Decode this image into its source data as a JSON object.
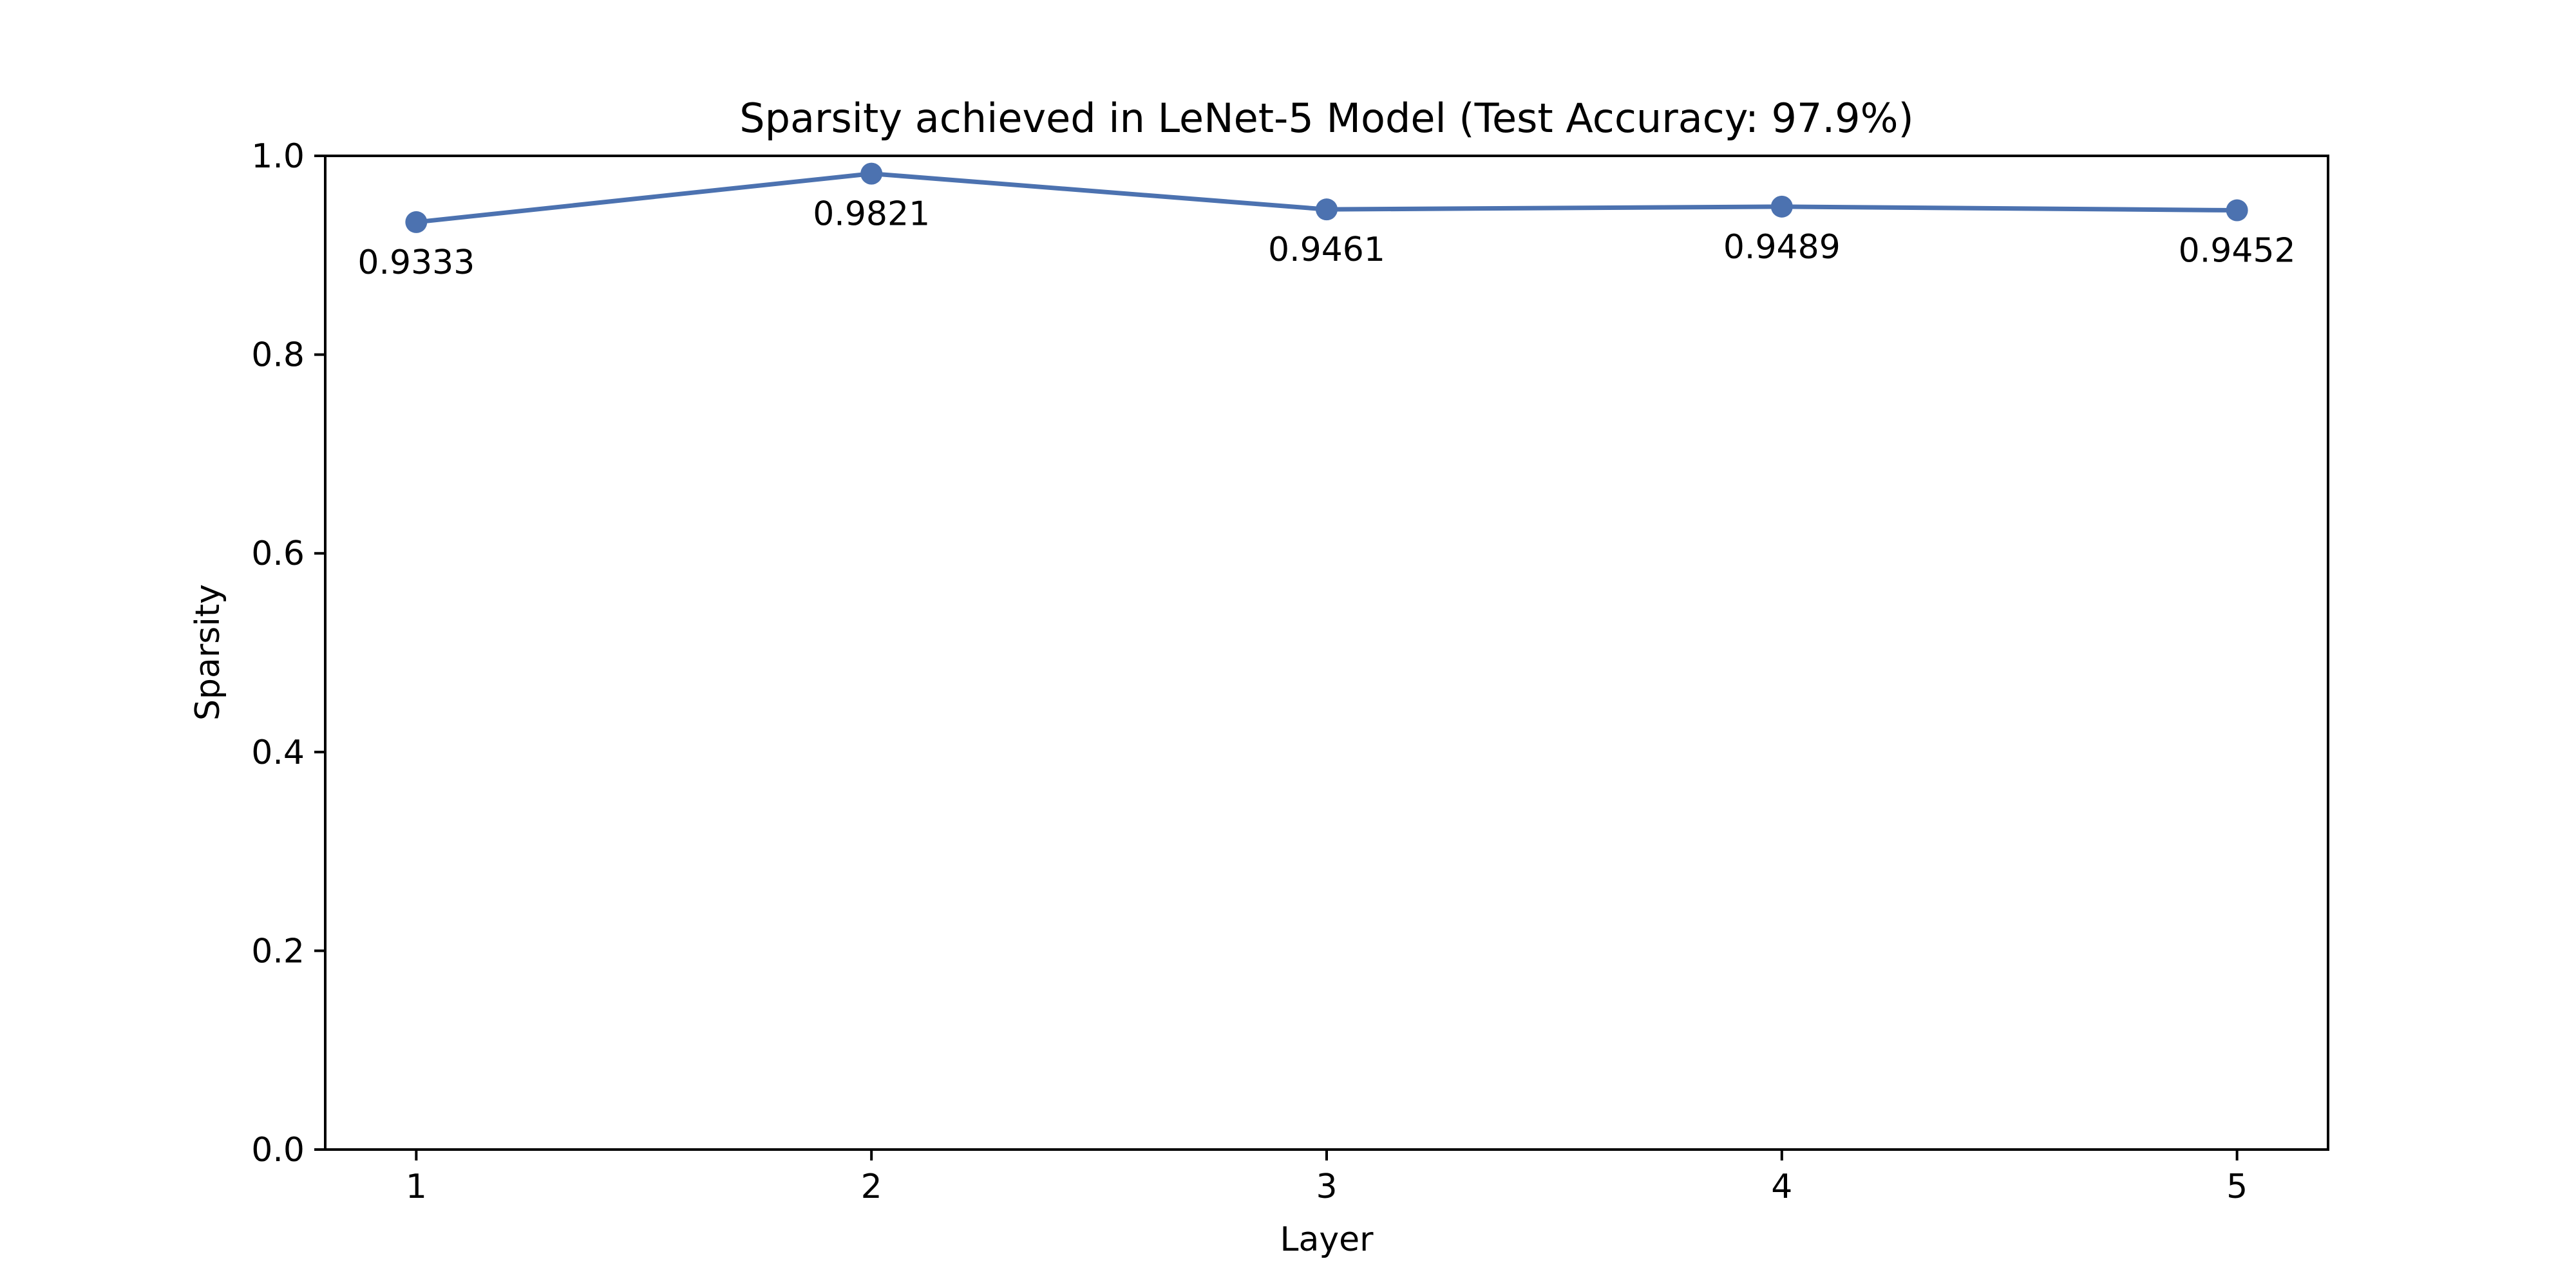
{
  "chart_data": {
    "type": "line",
    "title": "Sparsity achieved in LeNet-5 Model (Test Accuracy: 97.9%)",
    "xlabel": "Layer",
    "ylabel": "Sparsity",
    "x": [
      1,
      2,
      3,
      4,
      5
    ],
    "x_tick_labels": [
      "1",
      "2",
      "3",
      "4",
      "5"
    ],
    "xlim": [
      0.8,
      5.2
    ],
    "ylim": [
      0.0,
      1.0
    ],
    "y_ticks": [
      0.0,
      0.2,
      0.4,
      0.6,
      0.8,
      1.0
    ],
    "y_tick_labels": [
      "0.0",
      "0.2",
      "0.4",
      "0.6",
      "0.8",
      "1.0"
    ],
    "grid": false,
    "legend": "none",
    "series": [
      {
        "values": [
          0.9333,
          0.9821,
          0.9461,
          0.9489,
          0.9452
        ],
        "data_labels": [
          "0.9333",
          "0.9821",
          "0.9461",
          "0.9489",
          "0.9452"
        ],
        "color": "#4c72b0",
        "marker": "circle"
      }
    ]
  }
}
